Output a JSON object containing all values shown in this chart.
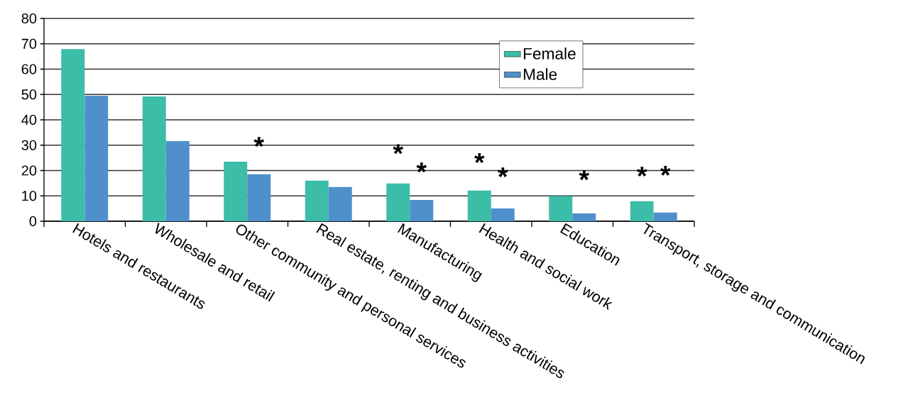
{
  "chart_data": {
    "type": "bar",
    "categories": [
      "Hotels and restaurants",
      "Wholesale and retail",
      "Other community and personal services",
      "Real estate, renting and business activities",
      "Manufacturing",
      "Health and social work",
      "Education",
      "Transport, storage and communication"
    ],
    "series": [
      {
        "name": "Female",
        "color": "#3cbda8",
        "values": [
          67.9,
          49.2,
          23.5,
          16.0,
          14.9,
          12.1,
          9.9,
          7.9
        ]
      },
      {
        "name": "Male",
        "color": "#4f90cc",
        "values": [
          49.5,
          31.6,
          18.5,
          13.5,
          8.4,
          5.0,
          3.1,
          3.4
        ]
      }
    ],
    "ylim": [
      0,
      80
    ],
    "yticks": [
      0,
      10,
      20,
      30,
      40,
      50,
      60,
      70,
      80
    ],
    "grid": "y",
    "legend": "top right",
    "annotations": [
      "*",
      "*",
      "*",
      "*",
      "*",
      "*",
      "*",
      "*"
    ]
  }
}
